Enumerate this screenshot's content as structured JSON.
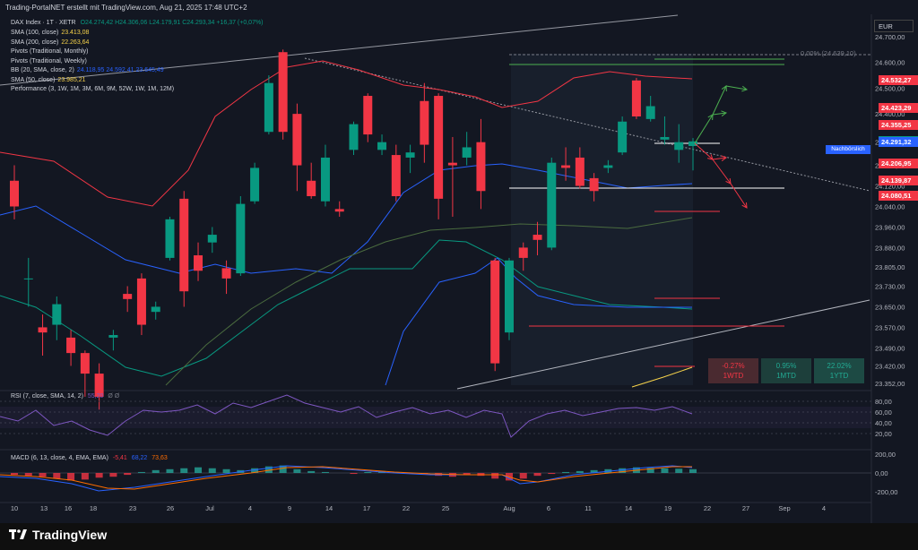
{
  "header": {
    "title": "Trading-PortalNET erstellt mit TradingView.com, Aug 21, 2025 17:48 UTC+2"
  },
  "currency": "EUR",
  "symbol_line": {
    "label": "DAX Index · 1T · XETR",
    "ohlc": "O24.274,42  H24.306,06  L24.179,91  C24.293,34  +16,37 (+0,07%)"
  },
  "indicators": [
    {
      "label": "SMA (100, close)",
      "value": "23.413,08",
      "color": "#f7d34b"
    },
    {
      "label": "SMA (200, close)",
      "value": "22.263,64",
      "color": "#f7d34b"
    },
    {
      "label": "Pivots (Traditional, Monthly)",
      "value": "",
      "color": "#d1d4dc"
    },
    {
      "label": "Pivots (Traditional, Weekly)",
      "value": "",
      "color": "#d1d4dc"
    },
    {
      "label": "BB (20, SMA, close, 2)",
      "value": "24.118,95  24.592,41  23.645,49",
      "color": "#2962ff"
    },
    {
      "label": "SMA (50, close)",
      "value": "23.985,21",
      "color": "#f7d34b"
    },
    {
      "label": "Performance (3, 1W, 1M, 3M, 6M, 9M, 52W, 1W, 1M, 12M)",
      "value": "",
      "color": "#d1d4dc"
    }
  ],
  "pivot_label": "0,00% (24.639,10)",
  "price_badges": [
    {
      "text": "24.532,27",
      "value": 24532.27,
      "color": "#f23645"
    },
    {
      "text": "24.423,29",
      "value": 24423.29,
      "color": "#f23645"
    },
    {
      "text": "24.355,25",
      "value": 24355.25,
      "color": "#f23645"
    },
    {
      "text": "24.293,34",
      "value": 24293.34,
      "color": "#089981"
    },
    {
      "text": "24.291,32",
      "value": 24291.32,
      "color": "#2962ff"
    },
    {
      "text": "24.206,95",
      "value": 24206.95,
      "color": "#f23645"
    },
    {
      "text": "24.139,87",
      "value": 24139.87,
      "color": "#f23645"
    },
    {
      "text": "24.080,51",
      "value": 24080.51,
      "color": "#f23645"
    }
  ],
  "nachboerslich": "Nachbörslich",
  "performance": [
    {
      "value": "-0.27%",
      "label": "1WTD",
      "bg": "#4a2a30",
      "color": "#f23645"
    },
    {
      "value": "0.95%",
      "label": "1MTD",
      "bg": "#1d3f3b",
      "color": "#22ab94"
    },
    {
      "value": "22.02%",
      "label": "1YTD",
      "bg": "#1d4a44",
      "color": "#22ab94"
    }
  ],
  "rsi": {
    "label": "RSI (7, close, SMA, 14, 2)",
    "value": "55,20",
    "extra": "Ø  Ø",
    "ticks": [
      "80,00",
      "60,00",
      "40,00",
      "20,00"
    ],
    "tick_values": [
      80,
      60,
      40,
      20
    ]
  },
  "macd": {
    "label": "MACD (6, 13, close, 4, EMA, EMA)",
    "hist": "-5,41",
    "macd": "68,22",
    "signal": "73,63",
    "ticks": [
      "200,00",
      "0,00",
      "-200,00"
    ],
    "tick_values": [
      200,
      0,
      -200
    ]
  },
  "logo": "TradingView",
  "chart_data": {
    "type": "candlestick",
    "y_ticks": [
      "24.700,00",
      "24.600,00",
      "24.500,00",
      "24.400,00",
      "24.290,00",
      "24.200,00",
      "24.120,00",
      "24.040,00",
      "23.960,00",
      "23.880,00",
      "23.805,00",
      "23.730,00",
      "23.650,00",
      "23.570,00",
      "23.490,00",
      "23.420,00",
      "23.352,00"
    ],
    "y_tick_values": [
      24700,
      24600,
      24500,
      24400,
      24290,
      24200,
      24120,
      24040,
      23960,
      23880,
      23805,
      23730,
      23650,
      23570,
      23490,
      23420,
      23352
    ],
    "x_ticks": [
      "10",
      "13",
      "16",
      "18",
      "23",
      "26",
      "Jul",
      "4",
      "9",
      "14",
      "17",
      "22",
      "25",
      "Aug",
      "6",
      "11",
      "14",
      "19",
      "22",
      "27",
      "Sep",
      "4"
    ],
    "ohlc": [
      [
        24140,
        24200,
        23990,
        24040
      ],
      [
        23760,
        23840,
        23650,
        23760
      ],
      [
        23570,
        23620,
        23460,
        23550
      ],
      [
        23580,
        23690,
        23520,
        23660
      ],
      [
        23530,
        23560,
        23420,
        23470
      ],
      [
        23470,
        23480,
        23300,
        23390
      ],
      [
        23390,
        23430,
        23250,
        23300
      ],
      [
        23530,
        23560,
        23480,
        23540
      ],
      [
        23700,
        23730,
        23630,
        23680
      ],
      [
        23760,
        23780,
        23540,
        23580
      ],
      [
        23630,
        23670,
        23600,
        23650
      ],
      [
        23840,
        24000,
        23830,
        23990
      ],
      [
        24070,
        24100,
        23650,
        23710
      ],
      [
        23850,
        23900,
        23750,
        23790
      ],
      [
        23900,
        23960,
        23860,
        23930
      ],
      [
        23800,
        23830,
        23700,
        23760
      ],
      [
        23780,
        24080,
        23770,
        24050
      ],
      [
        24060,
        24210,
        24050,
        24190
      ],
      [
        24330,
        24550,
        24320,
        24520
      ],
      [
        24640,
        24650,
        24300,
        24330
      ],
      [
        24400,
        24440,
        24100,
        24200
      ],
      [
        24140,
        24210,
        24070,
        24080
      ],
      [
        24060,
        24280,
        24040,
        24230
      ],
      [
        24030,
        24060,
        24000,
        24020
      ],
      [
        24260,
        24370,
        24240,
        24360
      ],
      [
        24470,
        24480,
        24290,
        24320
      ],
      [
        24260,
        24320,
        24240,
        24290
      ],
      [
        24240,
        24280,
        24060,
        24080
      ],
      [
        24230,
        24280,
        24170,
        24250
      ],
      [
        24450,
        24520,
        24210,
        24280
      ],
      [
        24470,
        24480,
        23990,
        24070
      ],
      [
        24210,
        24310,
        24000,
        24200
      ],
      [
        24230,
        24330,
        24200,
        24270
      ],
      [
        24290,
        24380,
        24030,
        24100
      ],
      [
        23830,
        23840,
        23400,
        23430
      ],
      [
        23550,
        23840,
        23520,
        23830
      ],
      [
        23880,
        23900,
        23790,
        23840
      ],
      [
        23930,
        23980,
        23850,
        23910
      ],
      [
        23880,
        24230,
        23870,
        24210
      ],
      [
        24200,
        24270,
        24140,
        24190
      ],
      [
        24230,
        24270,
        24110,
        24120
      ],
      [
        24150,
        24170,
        24060,
        24100
      ],
      [
        24190,
        24220,
        24170,
        24200
      ],
      [
        24250,
        24390,
        24240,
        24370
      ],
      [
        24530,
        24540,
        24380,
        24390
      ],
      [
        24380,
        24470,
        24370,
        24430
      ],
      [
        24300,
        24390,
        24280,
        24310
      ],
      [
        24260,
        24360,
        24210,
        24290
      ],
      [
        24275,
        24306,
        24180,
        24293
      ]
    ]
  }
}
